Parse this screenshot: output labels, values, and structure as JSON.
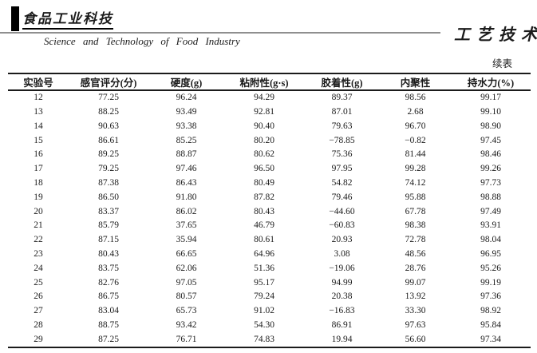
{
  "masthead": {
    "logo_cn": "食品工业科技",
    "journal_en": "Science and Technology of Food Industry",
    "section_cn": "工艺技术"
  },
  "table": {
    "continued_label": "续表",
    "columns": [
      "实验号",
      "感官评分(分)",
      "硬度(g)",
      "粘附性(g·s)",
      "胶着性(g)",
      "内聚性",
      "持水力(%)"
    ],
    "rows": [
      [
        "12",
        "77.25",
        "96.24",
        "94.29",
        "89.37",
        "98.56",
        "99.17"
      ],
      [
        "13",
        "88.25",
        "93.49",
        "92.81",
        "87.01",
        "2.68",
        "99.10"
      ],
      [
        "14",
        "90.63",
        "93.38",
        "90.40",
        "79.63",
        "96.70",
        "98.90"
      ],
      [
        "15",
        "86.61",
        "85.25",
        "80.20",
        "−78.85",
        "−0.82",
        "97.45"
      ],
      [
        "16",
        "89.25",
        "88.87",
        "80.62",
        "75.36",
        "81.44",
        "98.46"
      ],
      [
        "17",
        "79.25",
        "97.46",
        "96.50",
        "97.95",
        "99.28",
        "99.26"
      ],
      [
        "18",
        "87.38",
        "86.43",
        "80.49",
        "54.82",
        "74.12",
        "97.73"
      ],
      [
        "19",
        "86.50",
        "91.80",
        "87.82",
        "79.46",
        "95.88",
        "98.88"
      ],
      [
        "20",
        "83.37",
        "86.02",
        "80.43",
        "−44.60",
        "67.78",
        "97.49"
      ],
      [
        "21",
        "85.79",
        "37.65",
        "46.79",
        "−60.83",
        "98.38",
        "93.91"
      ],
      [
        "22",
        "87.15",
        "35.94",
        "80.61",
        "20.93",
        "72.78",
        "98.04"
      ],
      [
        "23",
        "80.43",
        "66.65",
        "64.96",
        "3.08",
        "48.56",
        "96.95"
      ],
      [
        "24",
        "83.75",
        "62.06",
        "51.36",
        "−19.06",
        "28.76",
        "95.26"
      ],
      [
        "25",
        "82.76",
        "97.05",
        "95.17",
        "94.99",
        "99.07",
        "99.19"
      ],
      [
        "26",
        "86.75",
        "80.57",
        "79.24",
        "20.38",
        "13.92",
        "97.36"
      ],
      [
        "27",
        "83.04",
        "65.73",
        "91.02",
        "−16.83",
        "33.30",
        "98.92"
      ],
      [
        "28",
        "88.75",
        "93.42",
        "54.30",
        "86.91",
        "97.63",
        "95.84"
      ],
      [
        "29",
        "87.25",
        "76.71",
        "74.83",
        "19.94",
        "56.60",
        "97.34"
      ]
    ]
  },
  "colors": {
    "ink": "#1b1b1b",
    "rule_gray": "#8f8f8f"
  }
}
